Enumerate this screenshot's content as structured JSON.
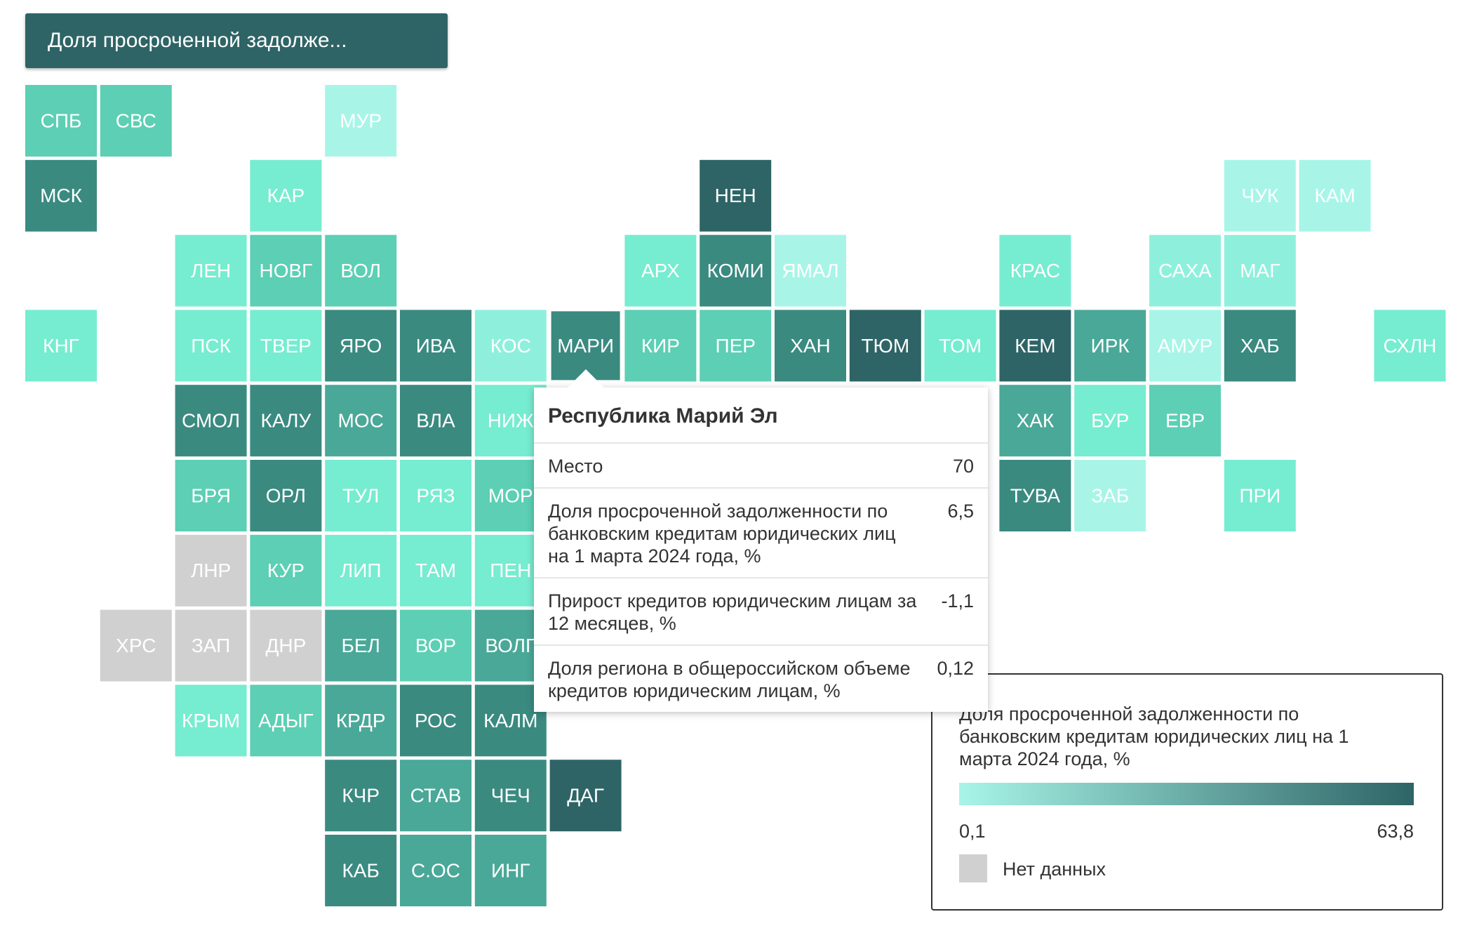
{
  "dropdown": {
    "label": "Доля просроченной задолже..."
  },
  "tiles": [
    {
      "label": "СПБ",
      "color": "#5ccfb4"
    },
    {
      "label": "СВС",
      "color": "#5ccfb4"
    },
    {
      "label": "МУР",
      "color": "#a8f5e8"
    },
    {
      "label": "МСК",
      "color": "#3a8a80"
    },
    {
      "label": "КАР",
      "color": "#76ecd0"
    },
    {
      "label": "НЕН",
      "color": "#2e6466"
    },
    {
      "label": "ЧУК",
      "color": "#a8f5e8"
    },
    {
      "label": "КАМ",
      "color": "#a8f5e8"
    },
    {
      "label": "ЛЕН",
      "color": "#76ecd0"
    },
    {
      "label": "НОВГ",
      "color": "#5ccfb4"
    },
    {
      "label": "ВОЛ",
      "color": "#5ccfb4"
    },
    {
      "label": "АРХ",
      "color": "#76ecd0"
    },
    {
      "label": "КОМИ",
      "color": "#3a8a80"
    },
    {
      "label": "ЯМАЛ",
      "color": "#a8f5e8"
    },
    {
      "label": "КРАС",
      "color": "#76ecd0"
    },
    {
      "label": "САХА",
      "color": "#8ef0dc"
    },
    {
      "label": "МАГ",
      "color": "#8ef0dc"
    },
    {
      "label": "КНГ",
      "color": "#76ecd0"
    },
    {
      "label": "ПСК",
      "color": "#76ecd0"
    },
    {
      "label": "ТВЕР",
      "color": "#76ecd0"
    },
    {
      "label": "ЯРО",
      "color": "#3a8a80"
    },
    {
      "label": "ИВА",
      "color": "#3a8a80"
    },
    {
      "label": "КОС",
      "color": "#8ef0dc"
    },
    {
      "label": "МАРИ",
      "color": "#3a8a80"
    },
    {
      "label": "КИР",
      "color": "#5ccfb4"
    },
    {
      "label": "ПЕР",
      "color": "#5ccfb4"
    },
    {
      "label": "ХАН",
      "color": "#3a8a80"
    },
    {
      "label": "ТЮМ",
      "color": "#2e6466"
    },
    {
      "label": "ТОМ",
      "color": "#76ecd0"
    },
    {
      "label": "КЕМ",
      "color": "#2e6466"
    },
    {
      "label": "ИРК",
      "color": "#4aa898"
    },
    {
      "label": "АМУР",
      "color": "#a8f5e8"
    },
    {
      "label": "ХАБ",
      "color": "#3a8a80"
    },
    {
      "label": "СХЛН",
      "color": "#76ecd0"
    },
    {
      "label": "СМОЛ",
      "color": "#3a8a80"
    },
    {
      "label": "КАЛУ",
      "color": "#3a8a80"
    },
    {
      "label": "МОС",
      "color": "#4aa898"
    },
    {
      "label": "ВЛА",
      "color": "#3a8a80"
    },
    {
      "label": "НИЖ",
      "color": "#76ecd0"
    },
    {
      "label": "ХАК",
      "color": "#4aa898"
    },
    {
      "label": "БУР",
      "color": "#76ecd0"
    },
    {
      "label": "ЕВР",
      "color": "#5ccfb4"
    },
    {
      "label": "БРЯ",
      "color": "#5ccfb4"
    },
    {
      "label": "ОРЛ",
      "color": "#3a8a80"
    },
    {
      "label": "ТУЛ",
      "color": "#76ecd0"
    },
    {
      "label": "РЯЗ",
      "color": "#76ecd0"
    },
    {
      "label": "МОР",
      "color": "#5ccfb4"
    },
    {
      "label": "ТУВА",
      "color": "#3a8a80"
    },
    {
      "label": "ЗАБ",
      "color": "#a8f5e8"
    },
    {
      "label": "ПРИ",
      "color": "#76ecd0"
    },
    {
      "label": "ЛНР",
      "color": "#d0d0d0"
    },
    {
      "label": "КУР",
      "color": "#5ccfb4"
    },
    {
      "label": "ЛИП",
      "color": "#76ecd0"
    },
    {
      "label": "ТАМ",
      "color": "#76ecd0"
    },
    {
      "label": "ПЕН",
      "color": "#76ecd0"
    },
    {
      "label": "ХРС",
      "color": "#d0d0d0"
    },
    {
      "label": "ЗАП",
      "color": "#d0d0d0"
    },
    {
      "label": "ДНР",
      "color": "#d0d0d0"
    },
    {
      "label": "БЕЛ",
      "color": "#4aa898"
    },
    {
      "label": "ВОР",
      "color": "#5ccfb4"
    },
    {
      "label": "ВОЛГ",
      "color": "#4aa898"
    },
    {
      "label": "КРЫМ",
      "color": "#76ecd0"
    },
    {
      "label": "АДЫГ",
      "color": "#5ccfb4"
    },
    {
      "label": "КРДР",
      "color": "#4aa898"
    },
    {
      "label": "РОС",
      "color": "#3a8a80"
    },
    {
      "label": "КАЛМ",
      "color": "#3a8a80"
    },
    {
      "label": "КЧР",
      "color": "#3a8a80"
    },
    {
      "label": "СТАВ",
      "color": "#4aa898"
    },
    {
      "label": "ЧЕЧ",
      "color": "#3a8a80"
    },
    {
      "label": "ДАГ",
      "color": "#2e6466"
    },
    {
      "label": "КАБ",
      "color": "#3a8a80"
    },
    {
      "label": "С.ОС",
      "color": "#4aa898"
    },
    {
      "label": "ИНГ",
      "color": "#4aa898"
    }
  ],
  "tooltip": {
    "title": "Республика Марий Эл",
    "rows": [
      {
        "label": "Место",
        "value": "70"
      },
      {
        "label": "Доля просроченной задолженности по банковским кредитам юридических лиц на 1 марта 2024 года, %",
        "value": "6,5"
      },
      {
        "label": "Прирост кредитов юридическим лицам за 12 месяцев, %",
        "value": "-1,1"
      },
      {
        "label": "Доля региона в общероссийском объеме кредитов юридическим лицам, %",
        "value": "0,12"
      }
    ]
  },
  "legend": {
    "title": "Доля просроченной задолженности по банковским кредитам юридических лиц на 1 марта 2024 года, %",
    "min": "0,1",
    "max": "63,8",
    "gradient": [
      "#a8f5e8",
      "#2e6466"
    ],
    "no_data": "Нет данных",
    "no_data_color": "#d0d0d0"
  }
}
